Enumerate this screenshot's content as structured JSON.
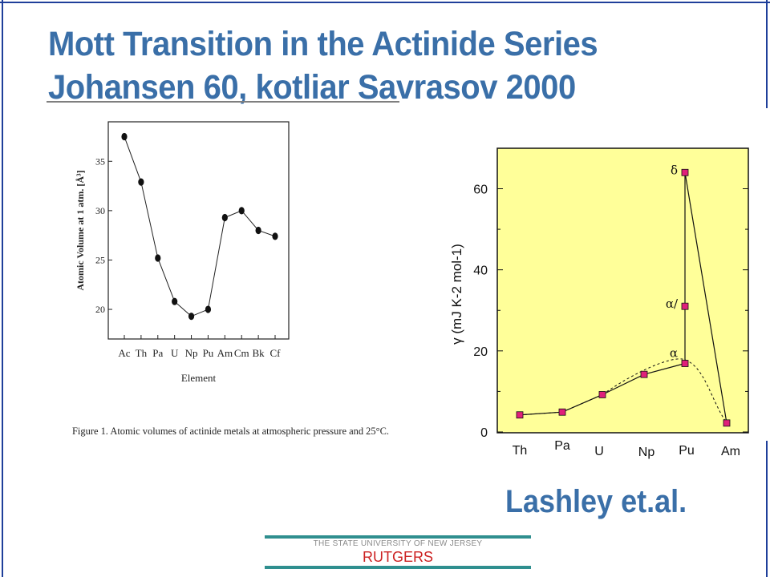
{
  "slide": {
    "title_line1": "Mott Transition in the Actinide Series",
    "title_line2": "Johansen 60, kotliar Savrasov 2000",
    "credit": "Lashley et.al.",
    "footer_university": "THE STATE UNIVERSITY OF NEW JERSEY",
    "footer_name": "RUTGERS"
  },
  "colors": {
    "title": "#3a6fa8",
    "panel_bg": "#ffff99",
    "marker": "#e0207a",
    "footer_bar": "#2f8f8f",
    "footer_name": "#cc2222"
  },
  "chart_data": [
    {
      "type": "line",
      "categories": [
        "Ac",
        "Th",
        "Pa",
        "U",
        "Np",
        "Pu",
        "Am",
        "Cm",
        "Bk",
        "Cf"
      ],
      "values": [
        37.5,
        32.9,
        25.2,
        20.8,
        19.3,
        20.0,
        29.3,
        30.0,
        28.0,
        27.4
      ],
      "title": "",
      "xlabel": "Element",
      "ylabel": "Atomic Volume at 1 atm. [Å³]",
      "ylim": [
        17,
        39
      ],
      "yticks": [
        "20",
        "25",
        "30",
        "35"
      ],
      "caption": "Figure 1. Atomic volumes of actinide metals at atmospheric pressure and 25°C.",
      "grid": false
    },
    {
      "type": "line",
      "categories": [
        "Th",
        "Pa",
        "U",
        "Np",
        "Pu",
        "Am"
      ],
      "xlabel": "",
      "ylabel": "γ (mJ K-2 mol-1)",
      "ylim": [
        0,
        70
      ],
      "yticks": [
        "0",
        "20",
        "40",
        "60"
      ],
      "series": [
        {
          "values": [
            4.2,
            4.9,
            9.2,
            14.2,
            16.9,
            2.2
          ]
        }
      ],
      "pu_phases": [
        {
          "label": "α",
          "value": 16.9
        },
        {
          "label": "α/",
          "value": 31.0
        },
        {
          "label": "δ",
          "value": 64.0
        }
      ],
      "connector": {
        "from_value": 64.0,
        "to_category": "Am",
        "to_value": 2.2
      },
      "grid": false
    }
  ]
}
